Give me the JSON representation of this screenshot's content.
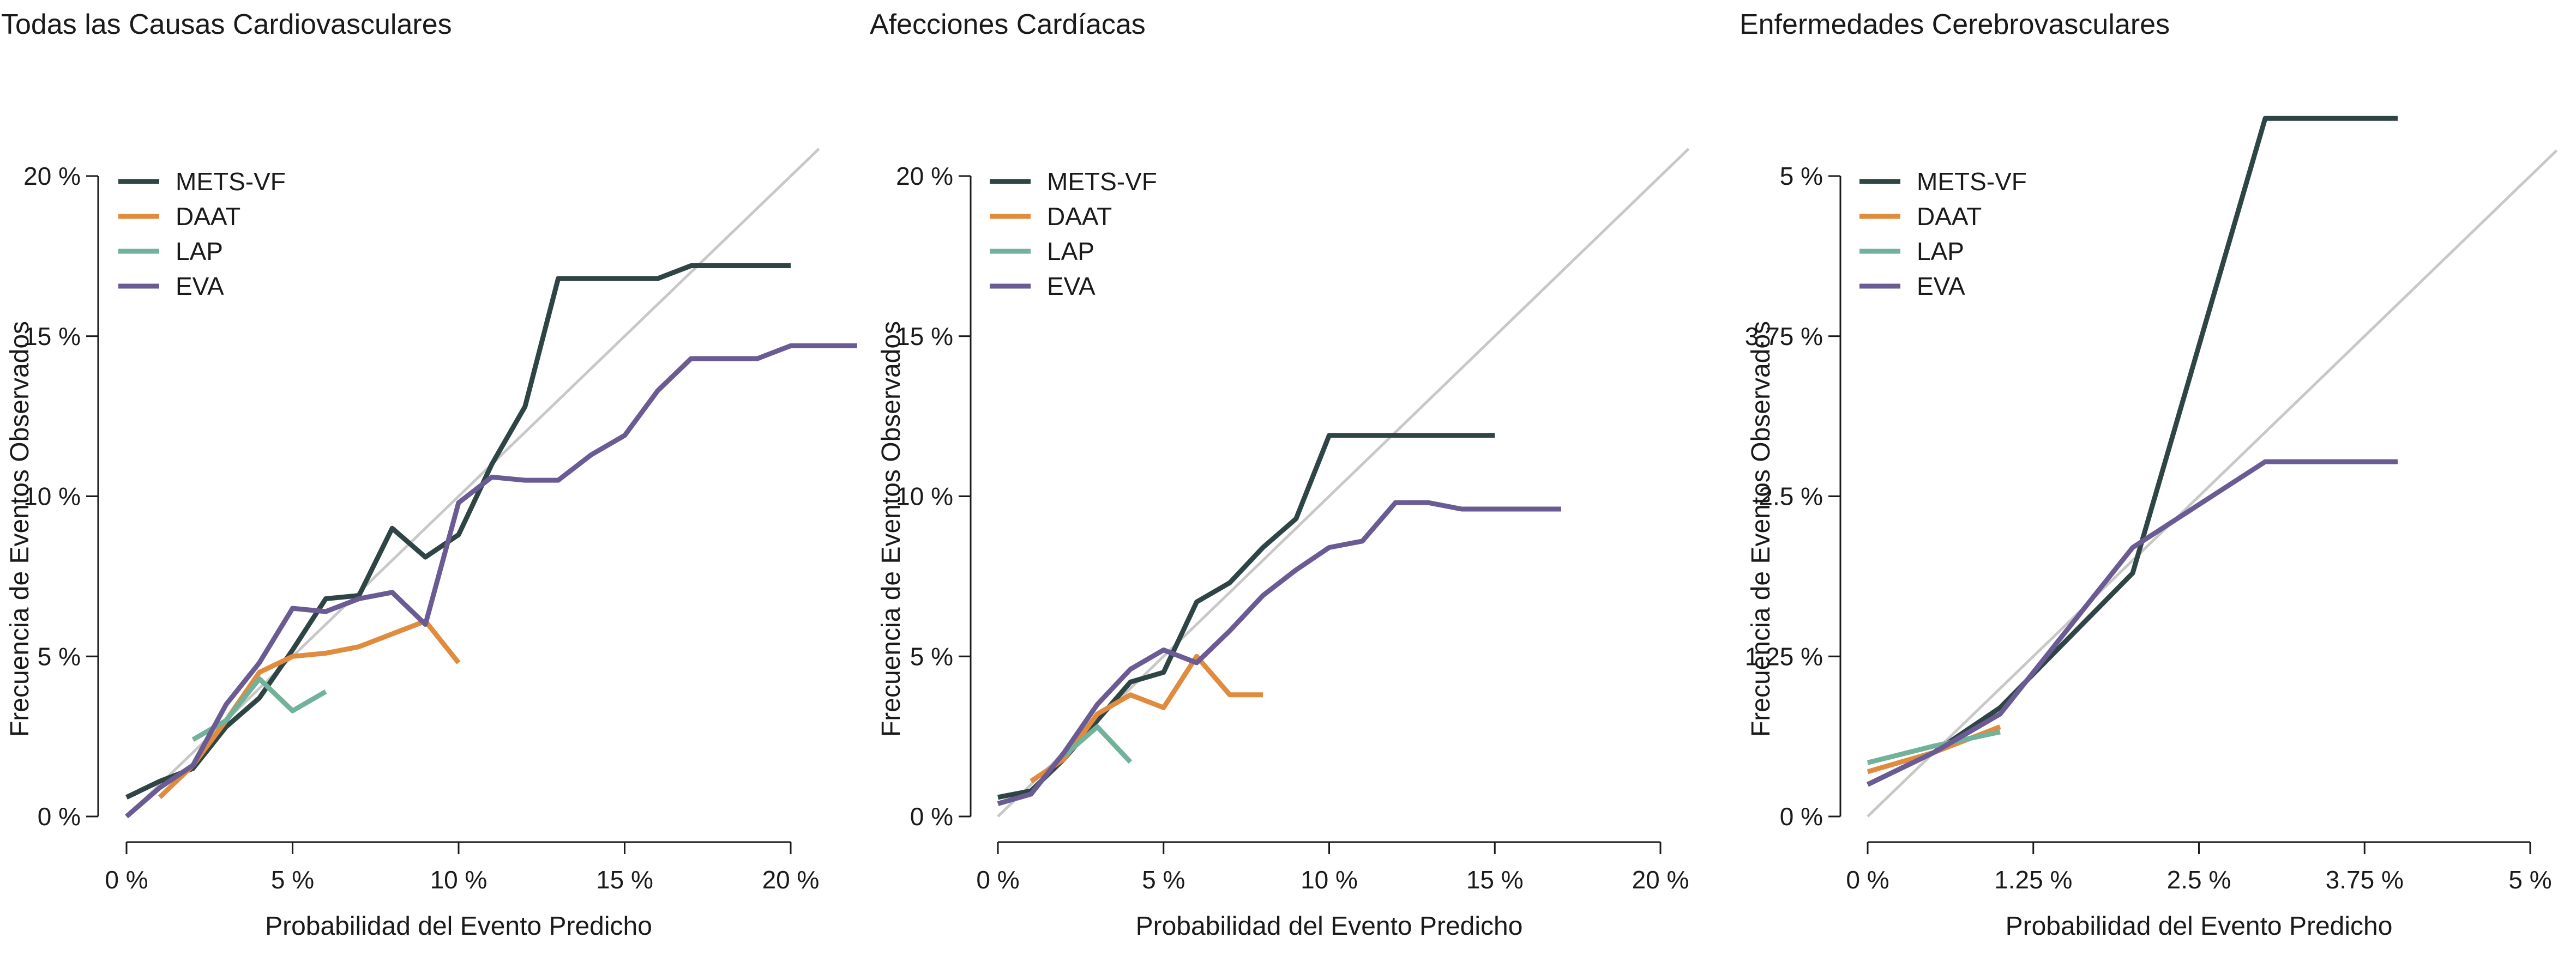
{
  "chart_data": [
    {
      "type": "line",
      "title": "Todas las Causas Cardiovasculares",
      "xlabel": "Probabilidad del Evento Predicho",
      "ylabel": "Frecuencia de Eventos Observados",
      "xlim": [
        -0.002,
        0.22
      ],
      "ylim": [
        0,
        0.2
      ],
      "xticks": [
        0,
        0.05,
        0.1,
        0.15,
        0.2
      ],
      "xtick_labels": [
        "0 %",
        "5 %",
        "10 %",
        "15 %",
        "20 %"
      ],
      "yticks": [
        0,
        0.05,
        0.1,
        0.15,
        0.2
      ],
      "ytick_labels": [
        "0 %",
        "5 %",
        "10 %",
        "15 %",
        "20 %"
      ],
      "reference_line": "y = x",
      "legend_position": "top-left",
      "series": [
        {
          "name": "METS-VF",
          "color": "#2f4545",
          "x": [
            0,
            0.01,
            0.02,
            0.03,
            0.04,
            0.05,
            0.06,
            0.07,
            0.08,
            0.09,
            0.1,
            0.11,
            0.12,
            0.13,
            0.14,
            0.15,
            0.16,
            0.17,
            0.18,
            0.19,
            0.2
          ],
          "y": [
            0.006,
            0.011,
            0.015,
            0.028,
            0.037,
            0.052,
            0.068,
            0.069,
            0.09,
            0.081,
            0.088,
            0.11,
            0.128,
            0.168,
            0.168,
            0.168,
            0.168,
            0.172,
            0.172,
            0.172,
            0.172
          ]
        },
        {
          "name": "DAAT",
          "color": "#e08b3e",
          "x": [
            0.01,
            0.02,
            0.03,
            0.04,
            0.05,
            0.06,
            0.07,
            0.08,
            0.09,
            0.1
          ],
          "y": [
            0.006,
            0.016,
            0.03,
            0.045,
            0.05,
            0.051,
            0.053,
            0.057,
            0.061,
            0.048
          ]
        },
        {
          "name": "LAP",
          "color": "#72b29a",
          "x": [
            0.02,
            0.03,
            0.04,
            0.05,
            0.06
          ],
          "y": [
            0.024,
            0.03,
            0.043,
            0.033,
            0.039
          ]
        },
        {
          "name": "EVA",
          "color": "#6b5b95",
          "x": [
            0,
            0.01,
            0.02,
            0.03,
            0.04,
            0.05,
            0.06,
            0.07,
            0.08,
            0.09,
            0.1,
            0.11,
            0.12,
            0.13,
            0.14,
            0.15,
            0.16,
            0.17,
            0.18,
            0.19,
            0.2,
            0.22
          ],
          "y": [
            0,
            0.009,
            0.016,
            0.035,
            0.048,
            0.065,
            0.064,
            0.068,
            0.07,
            0.06,
            0.098,
            0.106,
            0.105,
            0.105,
            0.113,
            0.119,
            0.133,
            0.143,
            0.143,
            0.143,
            0.147,
            0.147
          ]
        }
      ]
    },
    {
      "type": "line",
      "title": "Afecciones Cardíacas",
      "xlabel": "Probabilidad del Evento Predicho",
      "ylabel": "Frecuencia de Eventos Observados",
      "xlim": [
        -0.002,
        0.21
      ],
      "ylim": [
        0,
        0.2
      ],
      "xticks": [
        0,
        0.05,
        0.1,
        0.15,
        0.2
      ],
      "xtick_labels": [
        "0 %",
        "5 %",
        "10 %",
        "15 %",
        "20 %"
      ],
      "yticks": [
        0,
        0.05,
        0.1,
        0.15,
        0.2
      ],
      "ytick_labels": [
        "0 %",
        "5 %",
        "10 %",
        "15 %",
        "20 %"
      ],
      "reference_line": "y = x",
      "legend_position": "top-left",
      "series": [
        {
          "name": "METS-VF",
          "color": "#2f4545",
          "x": [
            0,
            0.01,
            0.02,
            0.03,
            0.04,
            0.05,
            0.06,
            0.07,
            0.08,
            0.09,
            0.1,
            0.11,
            0.12,
            0.13,
            0.14,
            0.15
          ],
          "y": [
            0.006,
            0.008,
            0.018,
            0.03,
            0.042,
            0.045,
            0.067,
            0.073,
            0.084,
            0.093,
            0.119,
            0.119,
            0.119,
            0.119,
            0.119,
            0.119
          ]
        },
        {
          "name": "DAAT",
          "color": "#e08b3e",
          "x": [
            0.01,
            0.02,
            0.03,
            0.04,
            0.05,
            0.06,
            0.07,
            0.08
          ],
          "y": [
            0.011,
            0.018,
            0.032,
            0.038,
            0.034,
            0.05,
            0.038,
            0.038
          ]
        },
        {
          "name": "LAP",
          "color": "#72b29a",
          "x": [
            0.02,
            0.03,
            0.04
          ],
          "y": [
            0.019,
            0.028,
            0.017
          ]
        },
        {
          "name": "EVA",
          "color": "#6b5b95",
          "x": [
            0,
            0.01,
            0.02,
            0.03,
            0.04,
            0.05,
            0.06,
            0.07,
            0.08,
            0.09,
            0.1,
            0.11,
            0.12,
            0.13,
            0.14,
            0.15,
            0.16,
            0.17
          ],
          "y": [
            0.004,
            0.007,
            0.02,
            0.035,
            0.046,
            0.052,
            0.048,
            0.058,
            0.069,
            0.077,
            0.084,
            0.086,
            0.098,
            0.098,
            0.096,
            0.096,
            0.096,
            0.096
          ]
        }
      ]
    },
    {
      "type": "line",
      "title": "Enfermedades Cerebrovasculares",
      "xlabel": "Probabilidad del Evento Predicho",
      "ylabel": "Frecuencia de Eventos Observados",
      "xlim": [
        -0.001,
        0.052
      ],
      "ylim": [
        0,
        0.05
      ],
      "xticks": [
        0,
        0.0125,
        0.025,
        0.0375,
        0.05
      ],
      "xtick_labels": [
        "0 %",
        "1.25 %",
        "2.5 %",
        "3.75 %",
        "5 %"
      ],
      "yticks": [
        0,
        0.0125,
        0.025,
        0.0375,
        0.05
      ],
      "ytick_labels": [
        "0 %",
        "1.25 %",
        "2.5 %",
        "3.75 %",
        "5 %"
      ],
      "reference_line": "y = x",
      "legend_position": "top-left",
      "series": [
        {
          "name": "METS-VF",
          "color": "#2f4545",
          "x": [
            0,
            0.005,
            0.01,
            0.02,
            0.03,
            0.04
          ],
          "y": [
            0.0025,
            0.005,
            0.0085,
            0.019,
            0.0545,
            0.0545
          ]
        },
        {
          "name": "DAAT",
          "color": "#e08b3e",
          "x": [
            0,
            0.005,
            0.01
          ],
          "y": [
            0.0035,
            0.005,
            0.007
          ]
        },
        {
          "name": "LAP",
          "color": "#72b29a",
          "x": [
            0,
            0.005,
            0.01
          ],
          "y": [
            0.0042,
            0.0055,
            0.0066
          ]
        },
        {
          "name": "EVA",
          "color": "#6b5b95",
          "x": [
            0,
            0.005,
            0.01,
            0.02,
            0.03,
            0.04
          ],
          "y": [
            0.0025,
            0.005,
            0.008,
            0.021,
            0.0277,
            0.0277
          ]
        }
      ]
    }
  ],
  "reference_line_color": "#c8c8c8"
}
